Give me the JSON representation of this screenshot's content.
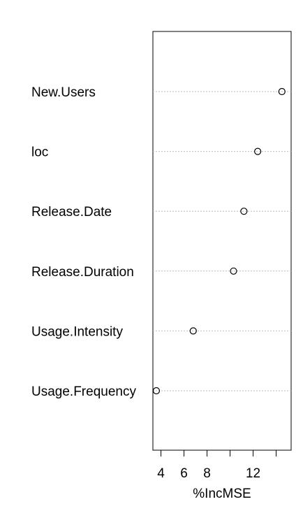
{
  "chart_data": {
    "type": "scatter",
    "subtype": "dotchart",
    "title": "",
    "xlabel": "%IncMSE",
    "ylabel": "",
    "categories": [
      "New.Users",
      "loc",
      "Release.Date",
      "Release.Duration",
      "Usage.Intensity",
      "Usage.Frequency"
    ],
    "values": [
      14.5,
      12.4,
      11.2,
      10.3,
      6.8,
      3.6
    ],
    "xlim": [
      3.3,
      15.3
    ],
    "x_ticks": [
      4,
      6,
      8,
      10,
      12,
      14
    ],
    "x_tick_labels": [
      "4",
      "6",
      "8",
      "",
      "12",
      ""
    ],
    "grid": "dotted horizontal guide lines per category",
    "legend": "none",
    "marker": "open-circle",
    "colors": {
      "frame": "#000000",
      "guide": "#bebebe",
      "marker": "#000000",
      "background": "#ffffff"
    }
  }
}
